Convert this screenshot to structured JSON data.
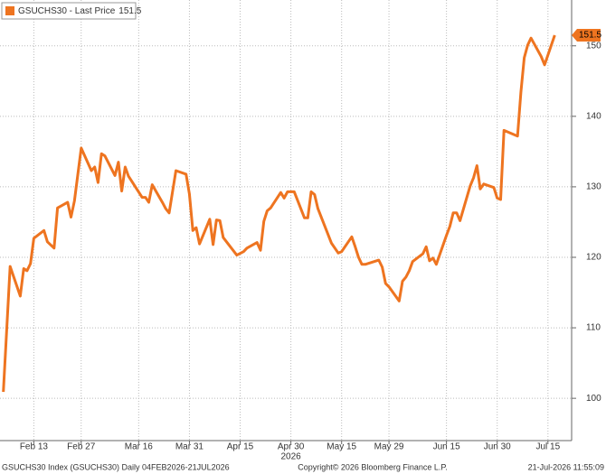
{
  "chart_data": {
    "type": "line",
    "series": [
      {
        "name": "GSUCHS30 - Last Price",
        "color": "#ee7420",
        "values": [
          100.9,
          118.7,
          114.5,
          118.4,
          118.1,
          119.1,
          122.7,
          123.8,
          122.2,
          121.3,
          127.0,
          127.8,
          125.7,
          128.0,
          135.5,
          132.3,
          132.8,
          130.6,
          134.7,
          134.4,
          131.6,
          133.5,
          129.4,
          132.8,
          131.5,
          128.5,
          128.5,
          127.8,
          130.3,
          127.8,
          126.9,
          126.3,
          132.3,
          131.8,
          129.0,
          123.8,
          124.2,
          121.9,
          125.4,
          121.8,
          125.3,
          125.2,
          122.8,
          120.3,
          120.8,
          121.3,
          122.1,
          121.0,
          125.1,
          126.6,
          127.0,
          129.2,
          128.4,
          129.3,
          129.3,
          125.6,
          125.6,
          129.3,
          128.9,
          126.9,
          122.0,
          120.6,
          120.8,
          122.9,
          121.5,
          120.0,
          119.0,
          119.0,
          119.6,
          118.6,
          116.3,
          115.8,
          113.8,
          116.6,
          117.2,
          118.1,
          119.4,
          120.5,
          121.5,
          119.5,
          119.9,
          119.0,
          123.1,
          124.4,
          126.3,
          126.3,
          125.2,
          130.1,
          131.3,
          133.0,
          129.7,
          130.4,
          129.9,
          128.4,
          128.2,
          138.0,
          137.2,
          143.4,
          148.3,
          150.1,
          151.1,
          148.5,
          147.3,
          151.5
        ]
      }
    ],
    "x": [
      "2026-02-04",
      "2026-02-06",
      "2026-02-09",
      "2026-02-10",
      "2026-02-11",
      "2026-02-12",
      "2026-02-13",
      "2026-02-16",
      "2026-02-17",
      "2026-02-19",
      "2026-02-20",
      "2026-02-23",
      "2026-02-24",
      "2026-02-25",
      "2026-02-27",
      "2026-03-02",
      "2026-03-03",
      "2026-03-04",
      "2026-03-05",
      "2026-03-06",
      "2026-03-09",
      "2026-03-10",
      "2026-03-11",
      "2026-03-12",
      "2026-03-13",
      "2026-03-17",
      "2026-03-18",
      "2026-03-19",
      "2026-03-20",
      "2026-03-23",
      "2026-03-24",
      "2026-03-25",
      "2026-03-27",
      "2026-03-30",
      "2026-03-31",
      "2026-04-01",
      "2026-04-02",
      "2026-04-03",
      "2026-04-06",
      "2026-04-07",
      "2026-04-08",
      "2026-04-09",
      "2026-04-10",
      "2026-04-14",
      "2026-04-16",
      "2026-04-17",
      "2026-04-20",
      "2026-04-21",
      "2026-04-22",
      "2026-04-23",
      "2026-04-24",
      "2026-04-27",
      "2026-04-28",
      "2026-04-29",
      "2026-05-01",
      "2026-05-04",
      "2026-05-05",
      "2026-05-06",
      "2026-05-07",
      "2026-05-08",
      "2026-05-12",
      "2026-05-14",
      "2026-05-15",
      "2026-05-18",
      "2026-05-19",
      "2026-05-20",
      "2026-05-21",
      "2026-05-22",
      "2026-05-26",
      "2026-05-27",
      "2026-05-28",
      "2026-05-29",
      "2026-06-01",
      "2026-06-02",
      "2026-06-03",
      "2026-06-04",
      "2026-06-05",
      "2026-06-08",
      "2026-06-09",
      "2026-06-10",
      "2026-06-11",
      "2026-06-12",
      "2026-06-15",
      "2026-06-16",
      "2026-06-17",
      "2026-06-18",
      "2026-06-19",
      "2026-06-22",
      "2026-06-23",
      "2026-06-24",
      "2026-06-25",
      "2026-06-26",
      "2026-06-29",
      "2026-06-30",
      "2026-07-01",
      "2026-07-02",
      "2026-07-06",
      "2026-07-07",
      "2026-07-08",
      "2026-07-09",
      "2026-07-10",
      "2026-07-13",
      "2026-07-14",
      "2026-07-17"
    ],
    "xlim": [
      "2026-02-03",
      "2026-07-22"
    ],
    "xticks": [
      {
        "value": "2026-02-13",
        "label": "Feb 13"
      },
      {
        "value": "2026-02-27",
        "label": "Feb 27"
      },
      {
        "value": "2026-03-16",
        "label": "Mar 16"
      },
      {
        "value": "2026-03-31",
        "label": "Mar 31"
      },
      {
        "value": "2026-04-15",
        "label": "Apr 15"
      },
      {
        "value": "2026-04-30",
        "label": "Apr 30"
      },
      {
        "value": "2026-05-15",
        "label": "May 15"
      },
      {
        "value": "2026-05-29",
        "label": "May 29"
      },
      {
        "value": "2026-06-15",
        "label": "Jun 15"
      },
      {
        "value": "2026-06-30",
        "label": "Jun 30"
      },
      {
        "value": "2026-07-15",
        "label": "Jul 15"
      }
    ],
    "x_year_label": "2026",
    "ylim": [
      94,
      156.5
    ],
    "yticks": [
      100,
      110,
      120,
      130,
      140,
      150
    ],
    "grid": true,
    "footer": {
      "left": "GSUCHS30 Index (GSUCHS30) Daily 04FEB2026-21JUL2026",
      "center": "Copyright© 2026 Bloomberg Finance L.P.",
      "right": "21-Jul-2026 11:55:09"
    }
  }
}
